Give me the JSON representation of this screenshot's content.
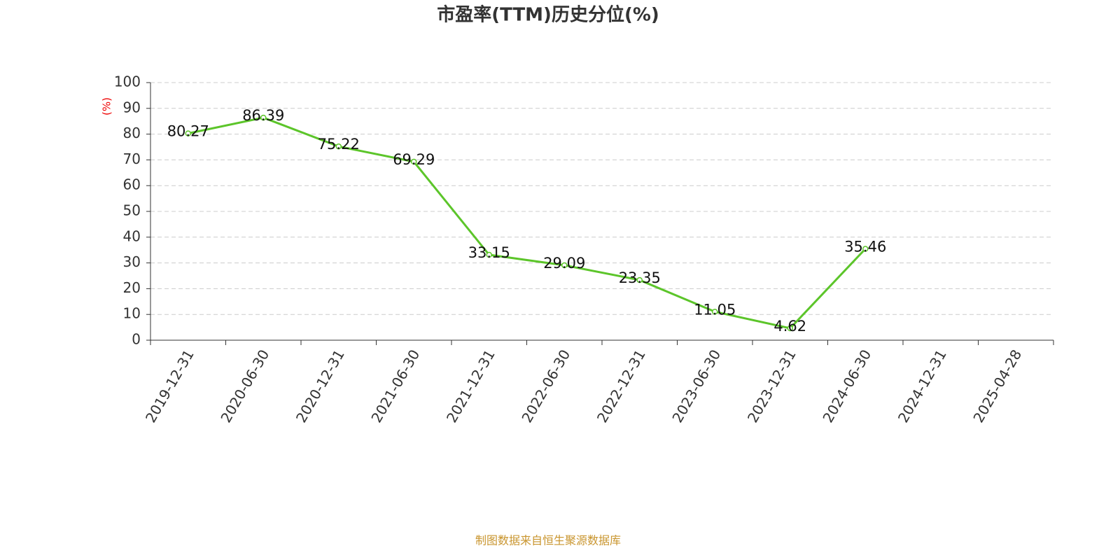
{
  "chart_data": {
    "type": "line",
    "title": "市盈率(TTM)历史分位(%)",
    "y_label": "(%)",
    "categories": [
      "2019-12-31",
      "2020-06-30",
      "2020-12-31",
      "2021-06-30",
      "2021-12-31",
      "2022-06-30",
      "2022-12-31",
      "2023-06-30",
      "2023-12-31",
      "2024-06-30",
      "2024-12-31",
      "2025-04-28"
    ],
    "series": [
      {
        "name": "市盈率(TTM)历史分位",
        "color": "#5cc52a",
        "values": [
          80.27,
          86.39,
          75.22,
          69.29,
          33.15,
          29.09,
          23.35,
          11.05,
          4.62,
          35.46,
          null,
          null
        ]
      }
    ],
    "ylim": [
      0,
      100
    ],
    "yticks": [
      0,
      10,
      20,
      30,
      40,
      50,
      60,
      70,
      80,
      90,
      100
    ],
    "grid": true,
    "source": "制图数据来自恒生聚源数据库"
  }
}
